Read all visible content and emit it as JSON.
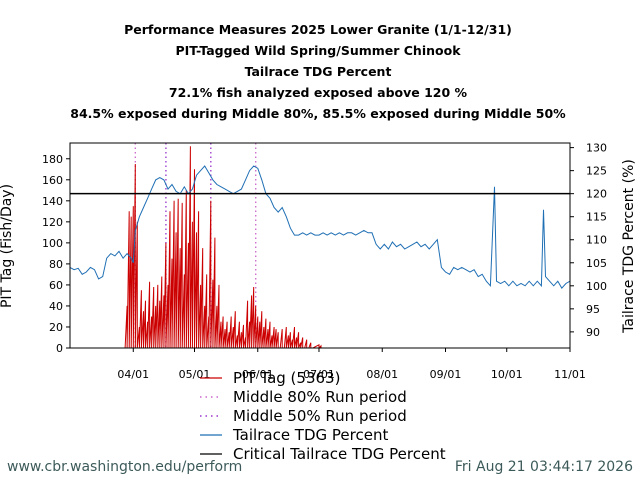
{
  "chart_data": {
    "type": "line",
    "title_lines": [
      "Performance Measures 2025 Lower Granite (1/1-12/31)",
      "PIT-Tagged Wild Spring/Summer Chinook",
      "Tailrace TDG Percent",
      "72.1% fish analyzed exposed above 120 %",
      "84.5% exposed during Middle 80%, 85.5% exposed during Middle 50%"
    ],
    "ylabel_left": "PIT Tag (Fish/Day)",
    "ylabel_right": "Tailrace TDG Percent (%)",
    "x_range": [
      "2025-03-01",
      "2025-11-01"
    ],
    "ylim_left": [
      0,
      195
    ],
    "ylim_right": [
      86.5,
      131
    ],
    "x_tick_labels": [
      "04/01",
      "05/01",
      "06/01",
      "07/01",
      "08/01",
      "09/01",
      "10/01",
      "11/01"
    ],
    "x_tick_dates": [
      "2025-04-01",
      "2025-05-01",
      "2025-06-01",
      "2025-07-01",
      "2025-08-01",
      "2025-09-01",
      "2025-10-01",
      "2025-11-01"
    ],
    "y_left_ticks": [
      0,
      20,
      40,
      60,
      80,
      100,
      120,
      140,
      160,
      180
    ],
    "y_right_ticks": [
      90,
      95,
      100,
      105,
      110,
      115,
      120,
      125,
      130
    ],
    "critical_tdg": 120,
    "middle_80_dates": [
      "2025-04-02",
      "2025-05-31"
    ],
    "middle_50_dates": [
      "2025-04-17",
      "2025-05-09"
    ],
    "colors": {
      "pit": "#cc0000",
      "tdg": "#1f6fb4",
      "critical": "#000000",
      "middle80": "#cc66cc",
      "middle50": "#9933cc",
      "footer": "#3d5a5a"
    },
    "series": [
      {
        "name": "PIT Tag (5363)",
        "axis": "left",
        "style": "spikes",
        "points": [
          [
            "2025-03-28",
            0
          ],
          [
            "2025-03-29",
            40
          ],
          [
            "2025-03-30",
            130
          ],
          [
            "2025-03-31",
            125
          ],
          [
            "2025-04-01",
            135
          ],
          [
            "2025-04-02",
            175
          ],
          [
            "2025-04-03",
            120
          ],
          [
            "2025-04-04",
            20
          ],
          [
            "2025-04-05",
            55
          ],
          [
            "2025-04-06",
            35
          ],
          [
            "2025-04-07",
            45
          ],
          [
            "2025-04-08",
            25
          ],
          [
            "2025-04-09",
            63
          ],
          [
            "2025-04-10",
            30
          ],
          [
            "2025-04-11",
            58
          ],
          [
            "2025-04-12",
            40
          ],
          [
            "2025-04-13",
            60
          ],
          [
            "2025-04-14",
            45
          ],
          [
            "2025-04-15",
            68
          ],
          [
            "2025-04-16",
            50
          ],
          [
            "2025-04-17",
            100
          ],
          [
            "2025-04-18",
            60
          ],
          [
            "2025-04-19",
            130
          ],
          [
            "2025-04-20",
            85
          ],
          [
            "2025-04-21",
            140
          ],
          [
            "2025-04-22",
            110
          ],
          [
            "2025-04-23",
            142
          ],
          [
            "2025-04-24",
            95
          ],
          [
            "2025-04-25",
            138
          ],
          [
            "2025-04-26",
            70
          ],
          [
            "2025-04-27",
            150
          ],
          [
            "2025-04-28",
            100
          ],
          [
            "2025-04-29",
            192
          ],
          [
            "2025-04-30",
            120
          ],
          [
            "2025-05-01",
            170
          ],
          [
            "2025-05-02",
            110
          ],
          [
            "2025-05-03",
            130
          ],
          [
            "2025-05-04",
            60
          ],
          [
            "2025-05-05",
            95
          ],
          [
            "2025-05-06",
            40
          ],
          [
            "2025-05-07",
            70
          ],
          [
            "2025-05-08",
            30
          ],
          [
            "2025-05-09",
            140
          ],
          [
            "2025-05-10",
            65
          ],
          [
            "2025-05-11",
            105
          ],
          [
            "2025-05-12",
            40
          ],
          [
            "2025-05-13",
            60
          ],
          [
            "2025-05-14",
            25
          ],
          [
            "2025-05-15",
            30
          ],
          [
            "2025-05-16",
            18
          ],
          [
            "2025-05-17",
            25
          ],
          [
            "2025-05-18",
            15
          ],
          [
            "2025-05-19",
            30
          ],
          [
            "2025-05-20",
            20
          ],
          [
            "2025-05-21",
            35
          ],
          [
            "2025-05-22",
            12
          ],
          [
            "2025-05-23",
            25
          ],
          [
            "2025-05-24",
            15
          ],
          [
            "2025-05-25",
            22
          ],
          [
            "2025-05-26",
            10
          ],
          [
            "2025-05-27",
            45
          ],
          [
            "2025-05-28",
            25
          ],
          [
            "2025-05-29",
            50
          ],
          [
            "2025-05-30",
            58
          ],
          [
            "2025-05-31",
            40
          ],
          [
            "2025-06-01",
            30
          ],
          [
            "2025-06-02",
            25
          ],
          [
            "2025-06-03",
            35
          ],
          [
            "2025-06-04",
            20
          ],
          [
            "2025-06-05",
            28
          ],
          [
            "2025-06-06",
            18
          ],
          [
            "2025-06-07",
            25
          ],
          [
            "2025-06-08",
            12
          ],
          [
            "2025-06-09",
            20
          ],
          [
            "2025-06-10",
            18
          ],
          [
            "2025-06-11",
            15
          ],
          [
            "2025-06-12",
            0
          ],
          [
            "2025-06-13",
            18
          ],
          [
            "2025-06-14",
            0
          ],
          [
            "2025-06-15",
            20
          ],
          [
            "2025-06-16",
            12
          ],
          [
            "2025-06-17",
            15
          ],
          [
            "2025-06-18",
            8
          ],
          [
            "2025-06-19",
            20
          ],
          [
            "2025-06-20",
            10
          ],
          [
            "2025-06-21",
            15
          ],
          [
            "2025-06-22",
            5
          ],
          [
            "2025-06-23",
            10
          ],
          [
            "2025-06-24",
            0
          ],
          [
            "2025-06-25",
            8
          ],
          [
            "2025-06-26",
            0
          ],
          [
            "2025-06-27",
            5
          ],
          [
            "2025-06-28",
            0
          ],
          [
            "2025-07-01",
            3
          ],
          [
            "2025-07-02",
            2
          ],
          [
            "2025-07-04",
            0
          ]
        ]
      },
      {
        "name": "Tailrace TDG Percent",
        "axis": "right",
        "style": "line",
        "points": [
          [
            "2025-03-01",
            104
          ],
          [
            "2025-03-03",
            103.5
          ],
          [
            "2025-03-05",
            103.8
          ],
          [
            "2025-03-07",
            102.5
          ],
          [
            "2025-03-09",
            103
          ],
          [
            "2025-03-11",
            104
          ],
          [
            "2025-03-13",
            103.5
          ],
          [
            "2025-03-15",
            101.5
          ],
          [
            "2025-03-17",
            102
          ],
          [
            "2025-03-19",
            106
          ],
          [
            "2025-03-21",
            107
          ],
          [
            "2025-03-23",
            106.5
          ],
          [
            "2025-03-25",
            107.5
          ],
          [
            "2025-03-27",
            106
          ],
          [
            "2025-03-29",
            107
          ],
          [
            "2025-03-31",
            106
          ],
          [
            "2025-04-01",
            105
          ],
          [
            "2025-04-02",
            112
          ],
          [
            "2025-04-04",
            115
          ],
          [
            "2025-04-06",
            117
          ],
          [
            "2025-04-08",
            119
          ],
          [
            "2025-04-10",
            121
          ],
          [
            "2025-04-12",
            123
          ],
          [
            "2025-04-14",
            123.5
          ],
          [
            "2025-04-16",
            123
          ],
          [
            "2025-04-18",
            121
          ],
          [
            "2025-04-20",
            122
          ],
          [
            "2025-04-22",
            120.5
          ],
          [
            "2025-04-24",
            120
          ],
          [
            "2025-04-26",
            121.5
          ],
          [
            "2025-04-28",
            120
          ],
          [
            "2025-04-30",
            121
          ],
          [
            "2025-05-02",
            124
          ],
          [
            "2025-05-04",
            125
          ],
          [
            "2025-05-06",
            126
          ],
          [
            "2025-05-08",
            124.5
          ],
          [
            "2025-05-10",
            123
          ],
          [
            "2025-05-12",
            122
          ],
          [
            "2025-05-14",
            121.5
          ],
          [
            "2025-05-16",
            121
          ],
          [
            "2025-05-18",
            120.5
          ],
          [
            "2025-05-20",
            120
          ],
          [
            "2025-05-22",
            120.5
          ],
          [
            "2025-05-24",
            121
          ],
          [
            "2025-05-26",
            123
          ],
          [
            "2025-05-28",
            125
          ],
          [
            "2025-05-30",
            126
          ],
          [
            "2025-06-01",
            125.5
          ],
          [
            "2025-06-03",
            123
          ],
          [
            "2025-06-05",
            120
          ],
          [
            "2025-06-07",
            119
          ],
          [
            "2025-06-09",
            117
          ],
          [
            "2025-06-11",
            116
          ],
          [
            "2025-06-13",
            117
          ],
          [
            "2025-06-15",
            115
          ],
          [
            "2025-06-17",
            112.5
          ],
          [
            "2025-06-19",
            111
          ],
          [
            "2025-06-21",
            111
          ],
          [
            "2025-06-23",
            111.5
          ],
          [
            "2025-06-25",
            111
          ],
          [
            "2025-06-27",
            111.5
          ],
          [
            "2025-06-29",
            111
          ],
          [
            "2025-07-01",
            111
          ],
          [
            "2025-07-03",
            111.5
          ],
          [
            "2025-07-05",
            111
          ],
          [
            "2025-07-07",
            111.5
          ],
          [
            "2025-07-09",
            111
          ],
          [
            "2025-07-11",
            111.5
          ],
          [
            "2025-07-13",
            111
          ],
          [
            "2025-07-15",
            111.5
          ],
          [
            "2025-07-17",
            111.5
          ],
          [
            "2025-07-19",
            111
          ],
          [
            "2025-07-21",
            111.5
          ],
          [
            "2025-07-23",
            112
          ],
          [
            "2025-07-25",
            111.5
          ],
          [
            "2025-07-27",
            111.5
          ],
          [
            "2025-07-29",
            109
          ],
          [
            "2025-07-31",
            108
          ],
          [
            "2025-08-02",
            109
          ],
          [
            "2025-08-04",
            108
          ],
          [
            "2025-08-06",
            109.5
          ],
          [
            "2025-08-08",
            108.5
          ],
          [
            "2025-08-10",
            109
          ],
          [
            "2025-08-12",
            108
          ],
          [
            "2025-08-14",
            108.5
          ],
          [
            "2025-08-16",
            109
          ],
          [
            "2025-08-18",
            109.5
          ],
          [
            "2025-08-20",
            108.5
          ],
          [
            "2025-08-22",
            109
          ],
          [
            "2025-08-24",
            108
          ],
          [
            "2025-08-26",
            109
          ],
          [
            "2025-08-28",
            110
          ],
          [
            "2025-08-30",
            104
          ],
          [
            "2025-09-01",
            103
          ],
          [
            "2025-09-03",
            102.5
          ],
          [
            "2025-09-05",
            104
          ],
          [
            "2025-09-07",
            103.5
          ],
          [
            "2025-09-09",
            104
          ],
          [
            "2025-09-11",
            103.5
          ],
          [
            "2025-09-13",
            103
          ],
          [
            "2025-09-15",
            103.5
          ],
          [
            "2025-09-17",
            102
          ],
          [
            "2025-09-19",
            102.5
          ],
          [
            "2025-09-21",
            101
          ],
          [
            "2025-09-23",
            100
          ],
          [
            "2025-09-25",
            121.5
          ],
          [
            "2025-09-26",
            101
          ],
          [
            "2025-09-28",
            100.5
          ],
          [
            "2025-09-30",
            101
          ],
          [
            "2025-10-02",
            100
          ],
          [
            "2025-10-04",
            101
          ],
          [
            "2025-10-06",
            100
          ],
          [
            "2025-10-08",
            100.5
          ],
          [
            "2025-10-10",
            100
          ],
          [
            "2025-10-12",
            101
          ],
          [
            "2025-10-14",
            100
          ],
          [
            "2025-10-16",
            101
          ],
          [
            "2025-10-18",
            100
          ],
          [
            "2025-10-19",
            116.5
          ],
          [
            "2025-10-20",
            102
          ],
          [
            "2025-10-22",
            101
          ],
          [
            "2025-10-24",
            100
          ],
          [
            "2025-10-26",
            101
          ],
          [
            "2025-10-28",
            99.5
          ],
          [
            "2025-10-30",
            100.5
          ],
          [
            "2025-11-01",
            101
          ]
        ]
      }
    ],
    "legend": [
      {
        "label": "PIT Tag (5363)",
        "style": "solid",
        "color": "#cc0000"
      },
      {
        "label": "Middle 80% Run period",
        "style": "dotted",
        "color": "#cc66cc"
      },
      {
        "label": "Middle 50% Run period",
        "style": "dotted",
        "color": "#9933cc"
      },
      {
        "label": "Tailrace TDG Percent",
        "style": "solid",
        "color": "#1f6fb4"
      },
      {
        "label": "Critical Tailrace TDG Percent",
        "style": "solid",
        "color": "#000000"
      }
    ],
    "legend_placement": "bottom-center",
    "grid": false
  },
  "footer": {
    "url": "www.cbr.washington.edu/perform",
    "timestamp": "Fri Aug 21 03:44:17 2026"
  }
}
